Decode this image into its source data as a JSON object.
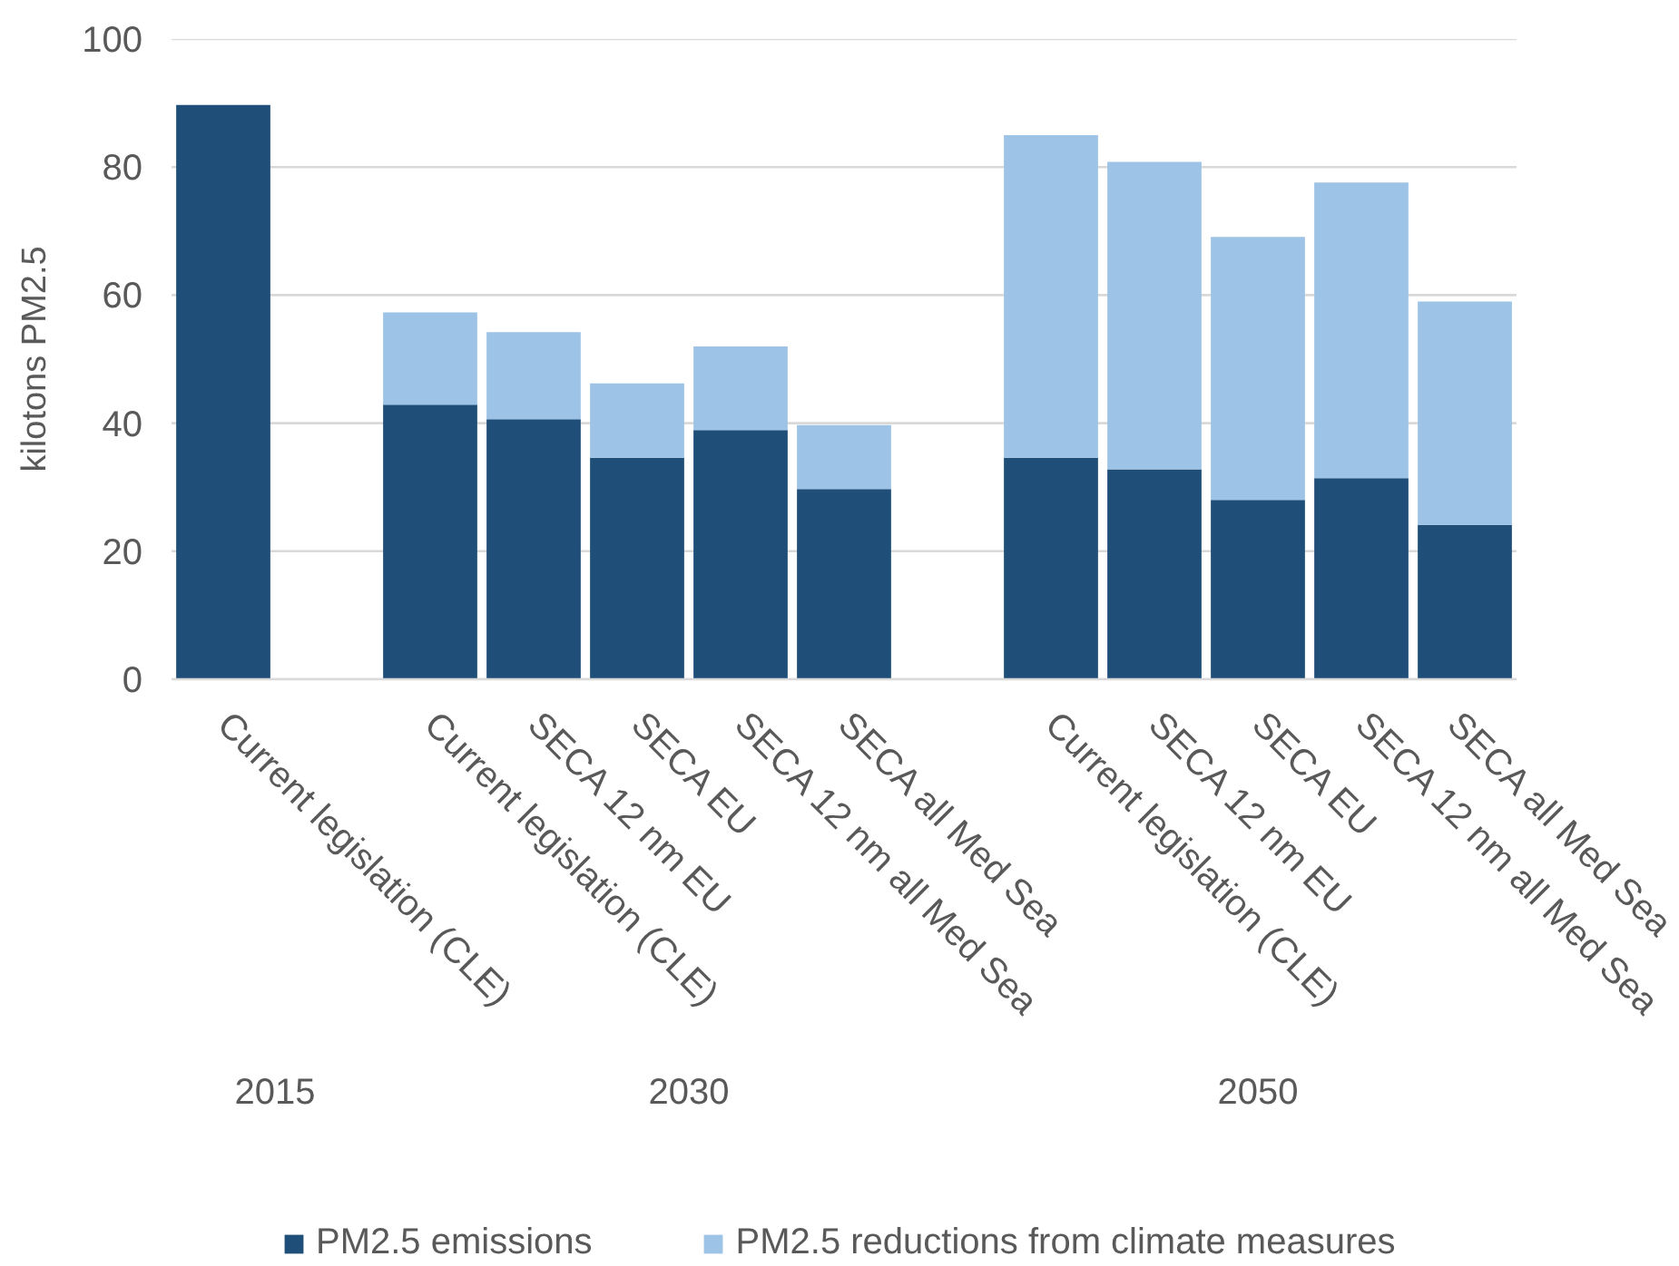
{
  "chart_data": {
    "type": "bar",
    "ylabel": "kilotons PM2.5",
    "categories": [
      "Current legislation (CLE)",
      null,
      "Current legislation (CLE)",
      "SECA 12 nm EU",
      "SECA EU",
      "SECA 12 nm all Med Sea",
      "SECA all Med Sea",
      null,
      "Current legislation (CLE)",
      "SECA 12 nm EU",
      "SECA EU",
      "SECA 12 nm all Med Sea",
      "SECA all Med Sea"
    ],
    "stacked": true,
    "series": [
      {
        "name": "PM2.5 emissions",
        "color": "#1f4e79",
        "values": [
          89.7,
          null,
          42.9,
          40.6,
          34.6,
          38.9,
          29.7,
          null,
          34.6,
          32.8,
          28.0,
          31.4,
          24.1
        ]
      },
      {
        "name": "PM2.5 reductions from climate measures",
        "color": "#9dc3e6",
        "values": [
          null,
          null,
          14.4,
          13.6,
          11.6,
          13.1,
          10.0,
          null,
          50.4,
          48.0,
          41.1,
          46.2,
          34.9
        ]
      }
    ],
    "ylim": [
      0,
      100
    ],
    "yticks": [
      0,
      20,
      40,
      60,
      80,
      100
    ],
    "grid": "y",
    "legend": "bottom",
    "annotations": [
      "2015",
      "2030",
      "2050"
    ]
  }
}
